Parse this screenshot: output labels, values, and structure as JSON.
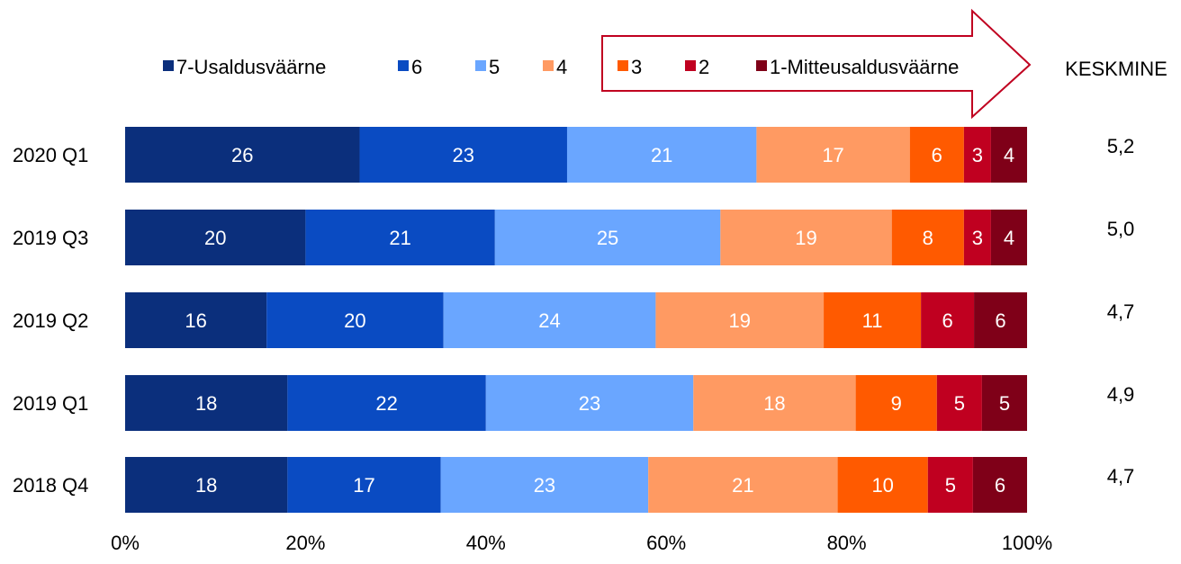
{
  "chart_data": {
    "type": "bar",
    "orientation": "horizontal",
    "stacked": "percent",
    "categories": [
      "2020 Q1",
      "2019 Q3",
      "2019 Q2",
      "2019 Q1",
      "2018 Q4"
    ],
    "series": [
      {
        "name": "7-Usaldusväärne",
        "color": "#0B2F7C",
        "values": [
          26,
          20,
          16,
          18,
          18
        ]
      },
      {
        "name": "6",
        "color": "#0A4BC2",
        "values": [
          23,
          21,
          20,
          22,
          17
        ]
      },
      {
        "name": "5",
        "color": "#6AA6FF",
        "values": [
          21,
          25,
          24,
          23,
          23
        ]
      },
      {
        "name": "4",
        "color": "#FF9A62",
        "values": [
          17,
          19,
          19,
          18,
          21
        ]
      },
      {
        "name": "3",
        "color": "#FF5A00",
        "values": [
          6,
          8,
          11,
          9,
          10
        ]
      },
      {
        "name": "2",
        "color": "#C00020",
        "values": [
          3,
          3,
          6,
          5,
          5
        ]
      },
      {
        "name": "1-Mitteusaldusväärne",
        "color": "#7F0018",
        "values": [
          4,
          4,
          6,
          5,
          6
        ]
      }
    ],
    "xlim": [
      0,
      100
    ],
    "x_ticks": [
      "0%",
      "20%",
      "40%",
      "60%",
      "80%",
      "100%"
    ],
    "average_header": "KESKMINE",
    "averages": [
      "5,2",
      "5,0",
      "4,7",
      "4,9",
      "4,7"
    ],
    "legend_position": "top",
    "annotation": "arrow outline around legend entries 3, 2 and 1-Mitteusaldusväärne",
    "arrow_color": "#C00020",
    "grid": false
  }
}
